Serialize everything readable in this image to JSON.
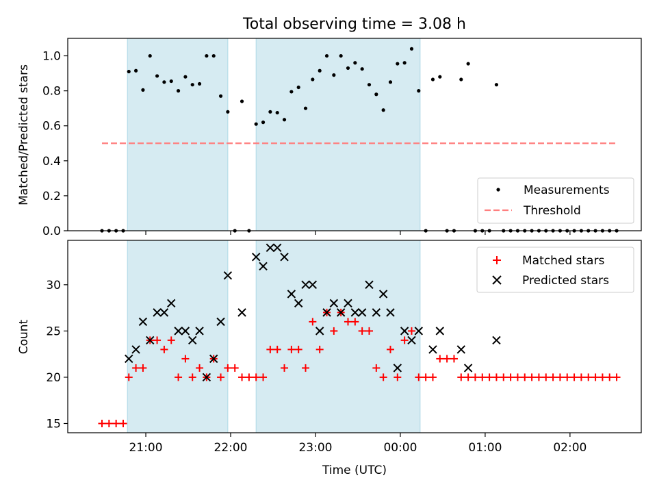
{
  "figure_title": "Total observing time = 3.08 h",
  "colors": {
    "shade": "#add8e6",
    "threshold": "#ff7f7f",
    "matched": "#ff0000",
    "predicted": "#000000",
    "measurement": "#000000"
  },
  "chart_data": [
    {
      "type": "scatter",
      "ylabel": "Matched/Predicted stars",
      "xlabel": "",
      "xlim_hours": [
        20.08,
        26.84
      ],
      "ylim": [
        0.0,
        1.1
      ],
      "yticks": [
        "0.0",
        "0.2",
        "0.4",
        "0.6",
        "0.8",
        "1.0"
      ],
      "grid": false,
      "legend_position": "lower right",
      "shaded_intervals": [
        [
          "20:47",
          "21:58"
        ],
        [
          "22:18",
          "00:14"
        ]
      ],
      "series": [
        {
          "name": "Measurements",
          "marker": "dot",
          "points": [
            [
              "20:29",
              0.0
            ],
            [
              "20:34",
              0.0
            ],
            [
              "20:39",
              0.0
            ],
            [
              "20:44",
              0.0
            ],
            [
              "20:48",
              0.91
            ],
            [
              "20:53",
              0.915
            ],
            [
              "20:58",
              0.805
            ],
            [
              "21:03",
              1.0
            ],
            [
              "21:08",
              0.885
            ],
            [
              "21:13",
              0.85
            ],
            [
              "21:18",
              0.855
            ],
            [
              "21:23",
              0.8
            ],
            [
              "21:28",
              0.88
            ],
            [
              "21:33",
              0.835
            ],
            [
              "21:38",
              0.84
            ],
            [
              "21:43",
              1.0
            ],
            [
              "21:48",
              1.0
            ],
            [
              "21:53",
              0.77
            ],
            [
              "21:58",
              0.68
            ],
            [
              "22:03",
              0.0
            ],
            [
              "22:08",
              0.74
            ],
            [
              "22:13",
              0.0
            ],
            [
              "22:18",
              0.61
            ],
            [
              "22:23",
              0.62
            ],
            [
              "22:28",
              0.68
            ],
            [
              "22:33",
              0.675
            ],
            [
              "22:38",
              0.635
            ],
            [
              "22:43",
              0.795
            ],
            [
              "22:48",
              0.82
            ],
            [
              "22:53",
              0.7
            ],
            [
              "22:58",
              0.865
            ],
            [
              "23:03",
              0.915
            ],
            [
              "23:08",
              1.0
            ],
            [
              "23:13",
              0.89
            ],
            [
              "23:18",
              1.0
            ],
            [
              "23:23",
              0.93
            ],
            [
              "23:28",
              0.96
            ],
            [
              "23:33",
              0.925
            ],
            [
              "23:38",
              0.835
            ],
            [
              "23:43",
              0.78
            ],
            [
              "23:48",
              0.69
            ],
            [
              "23:53",
              0.85
            ],
            [
              "23:58",
              0.955
            ],
            [
              "00:03",
              0.96
            ],
            [
              "00:08",
              1.04
            ],
            [
              "00:13",
              0.8
            ],
            [
              "00:18",
              0.0
            ],
            [
              "00:23",
              0.865
            ],
            [
              "00:28",
              0.88
            ],
            [
              "00:33",
              0.0
            ],
            [
              "00:38",
              0.0
            ],
            [
              "00:43",
              0.865
            ],
            [
              "00:48",
              0.955
            ],
            [
              "00:53",
              0.0
            ],
            [
              "00:58",
              0.0
            ],
            [
              "01:03",
              0.0
            ],
            [
              "01:08",
              0.835
            ],
            [
              "01:13",
              0.0
            ],
            [
              "01:18",
              0.0
            ],
            [
              "01:23",
              0.0
            ],
            [
              "01:28",
              0.0
            ],
            [
              "01:33",
              0.0
            ],
            [
              "01:38",
              0.0
            ],
            [
              "01:43",
              0.0
            ],
            [
              "01:48",
              0.0
            ],
            [
              "01:53",
              0.0
            ],
            [
              "01:58",
              0.0
            ],
            [
              "02:03",
              0.0
            ],
            [
              "02:08",
              0.0
            ],
            [
              "02:13",
              0.0
            ],
            [
              "02:18",
              0.0
            ],
            [
              "02:23",
              0.0
            ],
            [
              "02:28",
              0.0
            ],
            [
              "02:33",
              0.0
            ]
          ]
        },
        {
          "name": "Threshold",
          "marker": "dashed-line",
          "points": [
            [
              "20:29",
              0.5
            ],
            [
              "02:33",
              0.5
            ]
          ]
        }
      ]
    },
    {
      "type": "scatter",
      "ylabel": "Count",
      "xlabel": "Time (UTC)",
      "xlim_hours": [
        20.08,
        26.84
      ],
      "ylim": [
        14.0,
        34.8
      ],
      "yticks": [
        "15",
        "20",
        "25",
        "30"
      ],
      "xticks": [
        "21:00",
        "22:00",
        "23:00",
        "00:00",
        "01:00",
        "02:00"
      ],
      "grid": false,
      "legend_position": "upper right",
      "shaded_intervals": [
        [
          "20:47",
          "21:58"
        ],
        [
          "22:18",
          "00:14"
        ]
      ],
      "series": [
        {
          "name": "Matched stars",
          "marker": "plus",
          "points": [
            [
              "20:29",
              15
            ],
            [
              "20:34",
              15
            ],
            [
              "20:39",
              15
            ],
            [
              "20:44",
              15
            ],
            [
              "20:48",
              20
            ],
            [
              "20:53",
              21
            ],
            [
              "20:58",
              21
            ],
            [
              "21:03",
              24
            ],
            [
              "21:08",
              24
            ],
            [
              "21:13",
              23
            ],
            [
              "21:18",
              24
            ],
            [
              "21:23",
              20
            ],
            [
              "21:28",
              22
            ],
            [
              "21:33",
              20
            ],
            [
              "21:38",
              21
            ],
            [
              "21:43",
              20
            ],
            [
              "21:48",
              22
            ],
            [
              "21:53",
              20
            ],
            [
              "21:58",
              21
            ],
            [
              "22:03",
              21
            ],
            [
              "22:08",
              20
            ],
            [
              "22:13",
              20
            ],
            [
              "22:18",
              20
            ],
            [
              "22:23",
              20
            ],
            [
              "22:28",
              23
            ],
            [
              "22:33",
              23
            ],
            [
              "22:38",
              21
            ],
            [
              "22:43",
              23
            ],
            [
              "22:48",
              23
            ],
            [
              "22:53",
              21
            ],
            [
              "22:58",
              26
            ],
            [
              "23:03",
              23
            ],
            [
              "23:08",
              27
            ],
            [
              "23:13",
              25
            ],
            [
              "23:18",
              27
            ],
            [
              "23:23",
              26
            ],
            [
              "23:28",
              26
            ],
            [
              "23:33",
              25
            ],
            [
              "23:38",
              25
            ],
            [
              "23:43",
              21
            ],
            [
              "23:48",
              20
            ],
            [
              "23:53",
              23
            ],
            [
              "23:58",
              20
            ],
            [
              "00:03",
              24
            ],
            [
              "00:08",
              25
            ],
            [
              "00:13",
              20
            ],
            [
              "00:18",
              20
            ],
            [
              "00:23",
              20
            ],
            [
              "00:28",
              22
            ],
            [
              "00:33",
              22
            ],
            [
              "00:38",
              22
            ],
            [
              "00:43",
              20
            ],
            [
              "00:48",
              20
            ],
            [
              "00:53",
              20
            ],
            [
              "00:58",
              20
            ],
            [
              "01:03",
              20
            ],
            [
              "01:08",
              20
            ],
            [
              "01:13",
              20
            ],
            [
              "01:18",
              20
            ],
            [
              "01:23",
              20
            ],
            [
              "01:28",
              20
            ],
            [
              "01:33",
              20
            ],
            [
              "01:38",
              20
            ],
            [
              "01:43",
              20
            ],
            [
              "01:48",
              20
            ],
            [
              "01:53",
              20
            ],
            [
              "01:58",
              20
            ],
            [
              "02:03",
              20
            ],
            [
              "02:08",
              20
            ],
            [
              "02:13",
              20
            ],
            [
              "02:18",
              20
            ],
            [
              "02:23",
              20
            ],
            [
              "02:28",
              20
            ],
            [
              "02:33",
              20
            ]
          ]
        },
        {
          "name": "Predicted stars",
          "marker": "x",
          "points": [
            [
              "20:48",
              22
            ],
            [
              "20:53",
              23
            ],
            [
              "20:58",
              26
            ],
            [
              "21:03",
              24
            ],
            [
              "21:08",
              27
            ],
            [
              "21:13",
              27
            ],
            [
              "21:18",
              28
            ],
            [
              "21:23",
              25
            ],
            [
              "21:28",
              25
            ],
            [
              "21:33",
              24
            ],
            [
              "21:38",
              25
            ],
            [
              "21:43",
              20
            ],
            [
              "21:48",
              22
            ],
            [
              "21:53",
              26
            ],
            [
              "21:58",
              31
            ],
            [
              "22:08",
              27
            ],
            [
              "22:18",
              33
            ],
            [
              "22:23",
              32
            ],
            [
              "22:28",
              34
            ],
            [
              "22:33",
              34
            ],
            [
              "22:38",
              33
            ],
            [
              "22:43",
              29
            ],
            [
              "22:48",
              28
            ],
            [
              "22:53",
              30
            ],
            [
              "22:58",
              30
            ],
            [
              "23:03",
              25
            ],
            [
              "23:08",
              27
            ],
            [
              "23:13",
              28
            ],
            [
              "23:18",
              27
            ],
            [
              "23:23",
              28
            ],
            [
              "23:28",
              27
            ],
            [
              "23:33",
              27
            ],
            [
              "23:38",
              30
            ],
            [
              "23:43",
              27
            ],
            [
              "23:48",
              29
            ],
            [
              "23:53",
              27
            ],
            [
              "23:58",
              21
            ],
            [
              "00:03",
              25
            ],
            [
              "00:08",
              24
            ],
            [
              "00:13",
              25
            ],
            [
              "00:23",
              23
            ],
            [
              "00:28",
              25
            ],
            [
              "00:43",
              23
            ],
            [
              "00:48",
              21
            ],
            [
              "01:08",
              24
            ]
          ]
        }
      ]
    }
  ]
}
